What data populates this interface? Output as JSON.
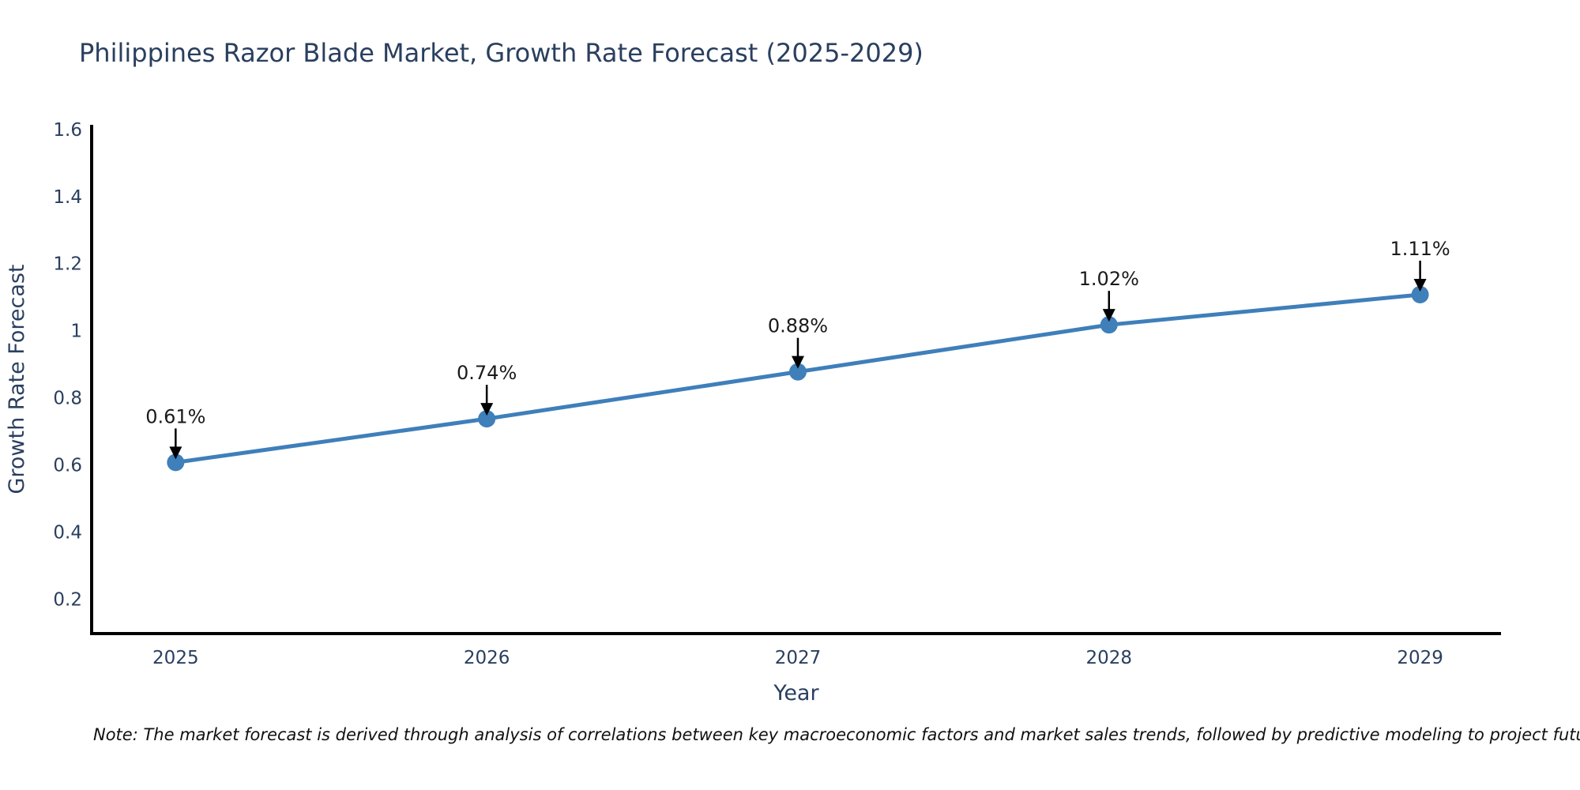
{
  "note": "Note: The market forecast is derived through analysis of correlations between key macroeconomic factors and market sales trends, followed by predictive modeling to project future sales",
  "chart_data": {
    "type": "line",
    "title": "Philippines Razor Blade Market, Growth Rate Forecast (2025-2029)",
    "xlabel": "Year",
    "ylabel": "Growth Rate Forecast",
    "x": [
      2025,
      2026,
      2027,
      2028,
      2029
    ],
    "categories": [
      "2025",
      "2026",
      "2027",
      "2028",
      "2029"
    ],
    "values": [
      0.61,
      0.74,
      0.88,
      1.02,
      1.11
    ],
    "point_labels": [
      "0.61%",
      "0.74%",
      "0.88%",
      "1.02%",
      "1.11%"
    ],
    "yticks": [
      0.2,
      0.4,
      0.6,
      0.8,
      1.0,
      1.2,
      1.4,
      1.6
    ],
    "ytick_labels": [
      "0.2",
      "0.4",
      "0.6",
      "0.8",
      "1",
      "1.2",
      "1.4",
      "1.6"
    ],
    "xlim": [
      2024.73,
      2029.26
    ],
    "ylim": [
      0.1,
      1.616
    ],
    "grid": false,
    "legend_position": "none",
    "marker": "circle",
    "annotations_have_arrows": true,
    "colors": {
      "line": "#3f7fba",
      "marker": "#3f7fba",
      "axis": "#000000",
      "tick_label": "#2a3f5f",
      "axis_title": "#2a3f5f",
      "chart_title": "#2a3f5f",
      "annotation_text": "#1a1a1a",
      "annotation_arrow": "#000000",
      "note_text": "#111111",
      "background": "#ffffff"
    }
  }
}
